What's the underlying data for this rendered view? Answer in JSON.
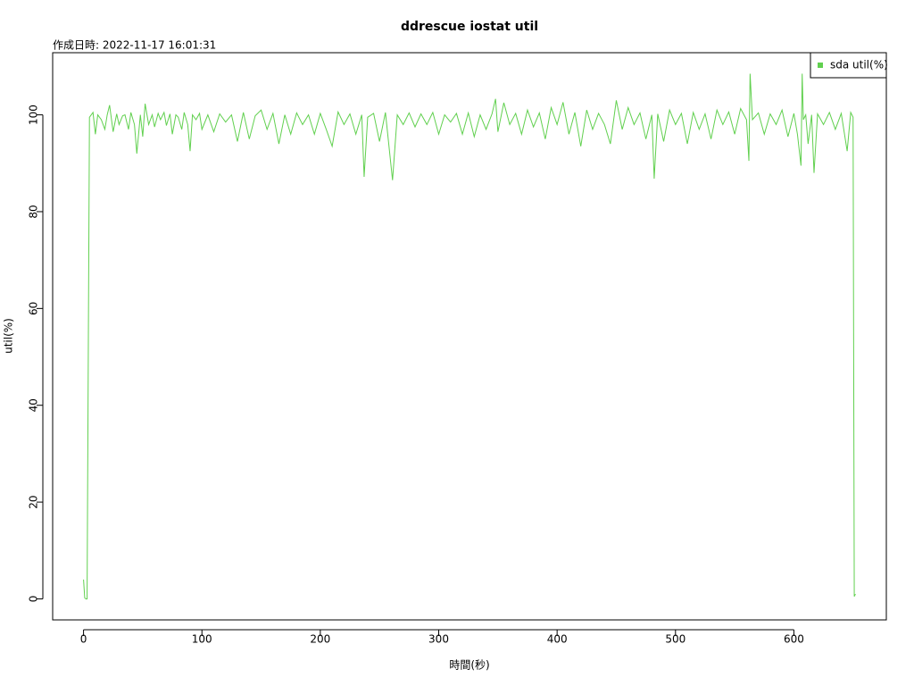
{
  "chart_data": {
    "type": "line",
    "title": "ddrescue iostat util",
    "subtitle": "作成日時: 2022-11-17 16:01:31",
    "xlabel": "時間(秒)",
    "ylabel": "util(%)",
    "xlim": [
      -26.08,
      678.08
    ],
    "ylim": [
      -4.34,
      112.84
    ],
    "xticks": [
      0,
      100,
      200,
      300,
      400,
      500,
      600
    ],
    "yticks": [
      0,
      20,
      40,
      60,
      80,
      100
    ],
    "grid": false,
    "legend": "topright",
    "x": [
      0,
      1,
      2,
      3,
      5,
      8,
      10,
      12,
      15,
      18,
      20,
      22,
      25,
      28,
      30,
      33,
      35,
      38,
      40,
      43,
      45,
      48,
      50,
      52,
      55,
      58,
      60,
      63,
      65,
      68,
      70,
      73,
      75,
      78,
      80,
      83,
      85,
      88,
      90,
      92,
      95,
      98,
      100,
      105,
      110,
      115,
      120,
      125,
      130,
      135,
      140,
      145,
      150,
      155,
      160,
      165,
      170,
      175,
      180,
      185,
      190,
      195,
      200,
      205,
      210,
      215,
      220,
      225,
      230,
      235,
      237,
      240,
      245,
      250,
      255,
      261,
      265,
      270,
      275,
      280,
      285,
      290,
      295,
      300,
      305,
      310,
      315,
      320,
      325,
      330,
      335,
      340,
      345,
      348,
      350,
      355,
      360,
      365,
      370,
      375,
      380,
      385,
      390,
      395,
      400,
      405,
      410,
      415,
      420,
      425,
      430,
      435,
      440,
      445,
      450,
      455,
      460,
      465,
      470,
      475,
      480,
      482,
      485,
      490,
      495,
      500,
      505,
      510,
      515,
      520,
      525,
      530,
      535,
      540,
      545,
      550,
      555,
      560,
      562,
      563,
      565,
      570,
      575,
      580,
      585,
      590,
      595,
      600,
      603,
      606,
      607,
      608,
      610,
      612,
      615,
      617,
      620,
      625,
      630,
      635,
      640,
      645,
      648,
      650,
      651,
      652
    ],
    "series": [
      {
        "name": "sda util(%)",
        "color": "#61d04f",
        "values": [
          4,
          0.2,
          0,
          0,
          99.5,
          100.5,
          96,
          100,
          99,
          97,
          100,
          102,
          96.5,
          100.2,
          98,
          99.8,
          100,
          97,
          100.5,
          98,
          92,
          100,
          95.5,
          102.3,
          98,
          100,
          97.5,
          100.3,
          99,
          100.5,
          97.8,
          100.2,
          96,
          100,
          99.5,
          97,
          100.5,
          98,
          92.5,
          100,
          99,
          100.3,
          97,
          100,
          96.5,
          100.2,
          98.5,
          100,
          94.5,
          100.5,
          95,
          99.8,
          101,
          97,
          100.3,
          94,
          100,
          96,
          100.4,
          98,
          100,
          96,
          100.3,
          97,
          93.5,
          100.6,
          98,
          100.2,
          96,
          100,
          87.2,
          99.5,
          100.3,
          94.5,
          100.5,
          86.5,
          100,
          98,
          100.4,
          97.5,
          100.2,
          98,
          100.5,
          96,
          100,
          98.5,
          100.3,
          96,
          100.4,
          95.5,
          100,
          97,
          100.2,
          103.3,
          96.5,
          102.5,
          98,
          100.3,
          96,
          101,
          97.5,
          100.4,
          95,
          101.5,
          98,
          102.6,
          96,
          100.5,
          93.5,
          101,
          97,
          100.3,
          98,
          94,
          103,
          97,
          101.5,
          98,
          100.4,
          95,
          100,
          86.8,
          100.2,
          94.5,
          101,
          98,
          100.3,
          94,
          100.5,
          97,
          100.2,
          95,
          101,
          98,
          100.6,
          96,
          101.3,
          99,
          90.5,
          108.5,
          99,
          100.4,
          96,
          100.2,
          98,
          101,
          95.5,
          100.3,
          96,
          89.5,
          108.5,
          99,
          100,
          94,
          100,
          88,
          100.2,
          98,
          100.5,
          97,
          100.3,
          92.5,
          100.5,
          99.5,
          0.5,
          1
        ]
      }
    ]
  }
}
